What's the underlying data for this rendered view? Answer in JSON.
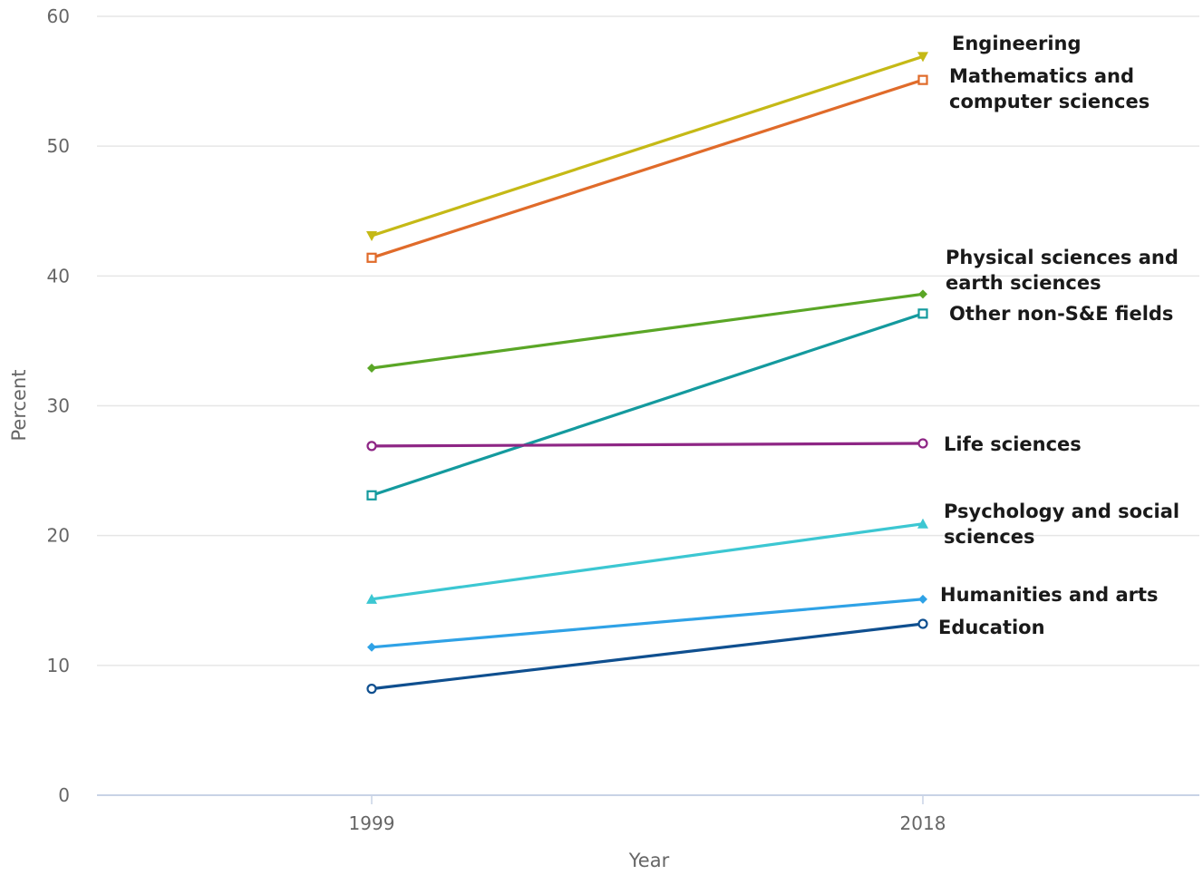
{
  "chart_data": {
    "type": "line",
    "title": "",
    "xlabel": "Year",
    "ylabel": "Percent",
    "x": [
      1999,
      2018
    ],
    "x_tick_labels": [
      "1999",
      "2018"
    ],
    "ylim": [
      0,
      60
    ],
    "y_ticks": [
      0,
      10,
      20,
      30,
      40,
      50,
      60
    ],
    "grid": true,
    "legend": "inline-right",
    "series": [
      {
        "name": "Engineering",
        "label_lines": [
          "Engineering"
        ],
        "values": [
          43.1,
          56.9
        ],
        "color": "#c5b916",
        "marker": "triangle-down"
      },
      {
        "name": "Mathematics and computer sciences",
        "label_lines": [
          "Mathematics and",
          "computer sciences"
        ],
        "values": [
          41.4,
          55.1
        ],
        "color": "#e06b2a",
        "marker": "square-open"
      },
      {
        "name": "Physical sciences and earth sciences",
        "label_lines": [
          "Physical sciences and",
          "earth sciences"
        ],
        "values": [
          32.9,
          38.6
        ],
        "color": "#5aa626",
        "marker": "diamond"
      },
      {
        "name": "Other non-S&E fields",
        "label_lines": [
          "Other non-S&E fields"
        ],
        "values": [
          23.1,
          37.1
        ],
        "color": "#149a9e",
        "marker": "square-open"
      },
      {
        "name": "Life sciences",
        "label_lines": [
          "Life sciences"
        ],
        "values": [
          26.9,
          27.1
        ],
        "color": "#8e2685",
        "marker": "circle-open"
      },
      {
        "name": "Psychology and social sciences",
        "label_lines": [
          "Psychology and social",
          "sciences"
        ],
        "values": [
          15.1,
          20.9
        ],
        "color": "#3cc7d2",
        "marker": "triangle-up"
      },
      {
        "name": "Humanities and arts",
        "label_lines": [
          "Humanities and arts"
        ],
        "values": [
          11.4,
          15.1
        ],
        "color": "#2fa2e6",
        "marker": "diamond"
      },
      {
        "name": "Education",
        "label_lines": [
          "Education"
        ],
        "values": [
          8.2,
          13.2
        ],
        "color": "#0f4f8f",
        "marker": "circle-open"
      }
    ]
  }
}
